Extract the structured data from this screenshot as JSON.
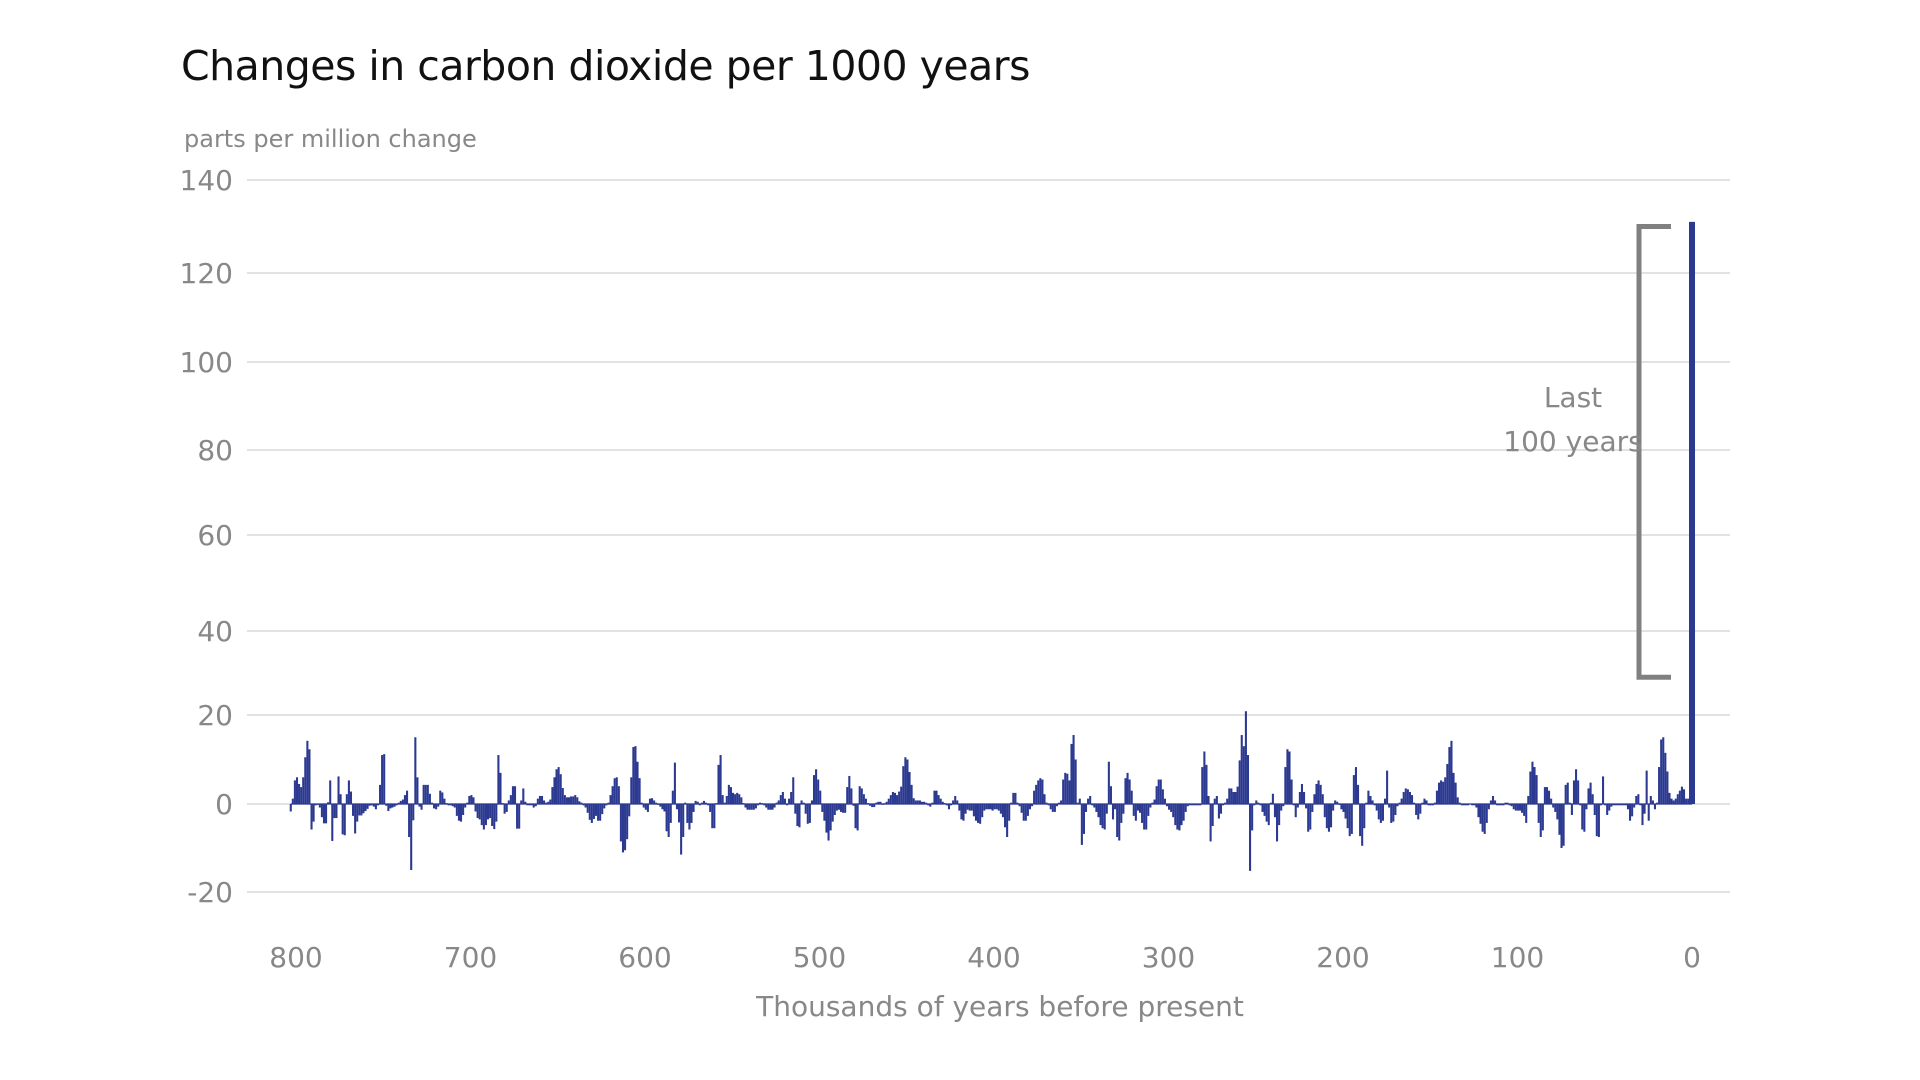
{
  "chart_data": {
    "type": "bar",
    "title": "Changes in carbon dioxide per 1000 years",
    "ylabel": "parts per million change",
    "xlabel": "Thousands of years before present",
    "ylim": [
      -20,
      140
    ],
    "xlim": [
      800,
      0
    ],
    "y_ticks": [
      "140",
      "120",
      "100",
      "80",
      "60",
      "40",
      "20",
      "0",
      "-20"
    ],
    "y_tick_values": [
      140,
      120,
      100,
      80,
      60,
      40,
      20,
      0,
      -20
    ],
    "x_ticks": [
      "800",
      "700",
      "600",
      "500",
      "400",
      "300",
      "200",
      "100",
      "0"
    ],
    "x_tick_values": [
      800,
      700,
      600,
      500,
      400,
      300,
      200,
      100,
      0
    ],
    "grid": true,
    "bar_color": "#2b3990",
    "annotation": {
      "lines": [
        "Last",
        "100 years"
      ],
      "bracket_range": [
        29,
        130
      ],
      "color": "#808080"
    },
    "series_start_year": 803,
    "series_end_year": 1,
    "values": [
      -1.7,
      1.2,
      5.3,
      6,
      4.5,
      3.8,
      6,
      10.5,
      14.2,
      12.3,
      -5.8,
      -4,
      -0.3,
      -0.2,
      -0.8,
      -3,
      -4.4,
      -4.4,
      0.4,
      5.3,
      -8.4,
      -3.2,
      -3.2,
      6.2,
      2.2,
      -6.9,
      -7.1,
      2.2,
      5.3,
      2.8,
      -2.7,
      -6.7,
      -4,
      -2.6,
      -2.6,
      -2.1,
      -1.6,
      -1.1,
      -0.4,
      -0.3,
      -0.6,
      -1.2,
      -0.3,
      4.3,
      11,
      11.2,
      -0.4,
      -1.6,
      -1,
      -0.8,
      -0.6,
      -0.3,
      0.3,
      0.7,
      1,
      2,
      3,
      -7.5,
      -15,
      -3.7,
      15,
      6,
      -0.6,
      -1.3,
      4.3,
      4.3,
      4.3,
      2.3,
      0.3,
      -1,
      -1.2,
      -0.6,
      3,
      2.6,
      1.2,
      0.2,
      -0.3,
      -0.3,
      -0.5,
      -0.8,
      -2.7,
      -3.8,
      -4,
      -2.5,
      -0.8,
      0.3,
      1.8,
      2,
      1.5,
      -1.7,
      -3.2,
      -3.5,
      -4.8,
      -5.8,
      -4.8,
      -3.5,
      -3.2,
      -5,
      -5.7,
      -4,
      11,
      7,
      0.2,
      -2.2,
      -1.8,
      0.8,
      2,
      4,
      4,
      -5.6,
      -5.6,
      0.8,
      3.5,
      0.5,
      -0.3,
      -0.3,
      -0.3,
      -0.8,
      -0.5,
      1.2,
      1.8,
      1.8,
      0.8,
      0.3,
      0.5,
      1,
      3.8,
      6,
      7.8,
      8.3,
      6.7,
      3.6,
      2,
      1.5,
      1.5,
      1.7,
      1.7,
      2,
      1.5,
      0.6,
      0.3,
      -0.3,
      -0.8,
      -2,
      -3.6,
      -4.3,
      -3.4,
      -2.7,
      -3.8,
      -3.8,
      -2.3,
      -1,
      -0.3,
      0.3,
      2,
      4,
      5.8,
      6,
      4,
      -8.5,
      -11,
      -10.5,
      -8,
      -2.8,
      6,
      12.8,
      13,
      9.5,
      5.8,
      0.3,
      -0.8,
      -1.3,
      -1.8,
      1.2,
      1.3,
      0.8,
      0.3,
      -0.2,
      -0.6,
      -1.2,
      -1.7,
      -6.2,
      -7.5,
      -4.3,
      3,
      9.3,
      -1.2,
      -4.2,
      -11.5,
      -7.5,
      0.3,
      -4.3,
      -5.8,
      -4.3,
      -1.8,
      0.7,
      0.5,
      -0.3,
      0.3,
      0.7,
      0.3,
      -0.3,
      -1.8,
      -5.5,
      -5.5,
      0.2,
      8.8,
      11,
      2,
      0.3,
      1.8,
      4.3,
      3.8,
      2.5,
      2.2,
      2.5,
      2.2,
      1.5,
      0.2,
      -0.8,
      -1.3,
      -1.3,
      -1.3,
      -1.3,
      -1,
      -0.3,
      0.3,
      0.2,
      -0.3,
      -0.8,
      -1.3,
      -1.3,
      -1.3,
      -0.8,
      0.3,
      0.8,
      2,
      2.7,
      1.2,
      -0.3,
      1.2,
      2.7,
      6,
      -2.2,
      -5,
      -5.3,
      0.8,
      0.3,
      -2.2,
      -4.5,
      -4.3,
      0.8,
      6.5,
      7.8,
      5.5,
      3,
      -1.8,
      -3.8,
      -6.5,
      -8.3,
      -6,
      -4,
      -2.5,
      -1.5,
      -1.3,
      -1.8,
      -2,
      -2,
      3.8,
      6.3,
      3.5,
      -0.4,
      -5.5,
      -6,
      4,
      3.5,
      2.2,
      1.2,
      0.2,
      -0.4,
      -0.7,
      -0.7,
      0.3,
      0.5,
      0.5,
      -0.2,
      0.2,
      0.5,
      1.2,
      2,
      2.7,
      2.5,
      2,
      2.8,
      3.9,
      8.5,
      10.5,
      10,
      7.2,
      4.3,
      1.3,
      0.8,
      0.8,
      0.8,
      0.5,
      0.5,
      0.3,
      -0.3,
      -0.6,
      0.3,
      3,
      3,
      2,
      1.2,
      0.5,
      0.2,
      -0.3,
      -1.2,
      -0.3,
      0.8,
      1.8,
      0.8,
      -1.5,
      -3.5,
      -3.8,
      -2.2,
      -1.3,
      -1.5,
      -1.5,
      -2.8,
      -3.8,
      -4.3,
      -4.5,
      -3,
      -1.5,
      -1.2,
      -1.2,
      -1.2,
      -1.5,
      -1.2,
      -1.2,
      -1.5,
      -2.2,
      -3,
      -5.3,
      -7.5,
      -3.8,
      0.3,
      2.5,
      2.5,
      0.3,
      -0.5,
      -2,
      -3.8,
      -3.8,
      -2.7,
      -1.2,
      -0.5,
      3,
      4.3,
      5.3,
      5.8,
      5.5,
      2.2,
      0.3,
      -0.3,
      -1.2,
      -1.8,
      -1.8,
      -0.5,
      0.3,
      0.8,
      5.5,
      7,
      6.8,
      5.3,
      13.5,
      15.5,
      10,
      0.3,
      1.2,
      -9.3,
      -6.8,
      -1.8,
      1.2,
      1.8,
      -0.3,
      -0.8,
      -1.8,
      -3,
      -4.8,
      -5.5,
      -5.8,
      -2.2,
      9.5,
      4,
      -3.5,
      -1.2,
      -7.5,
      -8.3,
      -4.3,
      -2.2,
      5.8,
      7,
      5.5,
      3,
      -2.7,
      -3.8,
      -1.5,
      -2,
      -4.3,
      -5.8,
      -5.8,
      -2.7,
      -0.8,
      0.3,
      1,
      4,
      5.5,
      5.5,
      3.3,
      1.2,
      -0.5,
      -1.3,
      -1.8,
      -3,
      -4.8,
      -5.8,
      -6,
      -4.8,
      -3.8,
      -1.8,
      -0.5,
      -0.3,
      -0.3,
      -0.3,
      -0.3,
      -0.3,
      -0.3,
      8.3,
      11.8,
      8.8,
      1.8,
      -8.5,
      -5,
      1.2,
      1.8,
      -3.3,
      -2.2,
      -0.3,
      0.3,
      1.2,
      3.5,
      3.5,
      2.7,
      2.7,
      3.9,
      9.8,
      15.5,
      13,
      20.9,
      11,
      -15.2,
      -6,
      -0.3,
      0.8,
      0.3,
      -0.3,
      -1.8,
      -2.7,
      -4,
      -4.8,
      0.3,
      2.3,
      -3,
      -8.5,
      -4.8,
      -1.5,
      -0.5,
      8.3,
      12.3,
      11.8,
      5.5,
      -0.3,
      -3,
      -0.8,
      2.7,
      4.5,
      2.7,
      -1,
      -6.3,
      -5.8,
      -1.8,
      2.2,
      4.5,
      5.3,
      4.3,
      2.2,
      -3,
      -5.5,
      -6.3,
      -5.3,
      -1.5,
      0.8,
      0.5,
      -0.2,
      -1.2,
      -1.8,
      -3.3,
      -5.5,
      -7.3,
      -6.8,
      6.5,
      8.3,
      4.3,
      -7.3,
      -9.5,
      -5.5,
      0.3,
      3,
      1.8,
      0.8,
      -0.3,
      -1.5,
      -3.5,
      -4.3,
      -3.8,
      1.2,
      7.5,
      -0.8,
      -4.3,
      -4,
      -2.5,
      -0.5,
      0.3,
      1.2,
      2.7,
      3.5,
      3.3,
      2.7,
      2,
      0.3,
      -2.5,
      -3.5,
      -2.2,
      0.3,
      1.2,
      0.8,
      -0.3,
      -0.3,
      -0.3,
      0.3,
      3,
      4.8,
      5.3,
      5,
      6,
      9,
      12.8,
      14.2,
      7,
      4.8,
      1.5,
      0.3,
      -0.3,
      -0.3,
      -0.3,
      -0.3,
      0.1,
      -0.3,
      -0.3,
      -0.8,
      -3,
      -4.5,
      -6.3,
      -6.8,
      -4.3,
      -1.2,
      0.8,
      1.8,
      0.8,
      -0.3,
      -0.3,
      -0.3,
      -0.3,
      0.3,
      0.3,
      -0.3,
      -0.5,
      -1.2,
      -1.5,
      -1.5,
      -1.5,
      -2,
      -2.7,
      -4.3,
      1.8,
      7.3,
      9.5,
      8.3,
      6.5,
      -4.3,
      -7.5,
      -6,
      3.8,
      3.8,
      3,
      1.2,
      -0.8,
      -1.8,
      -3.5,
      -7,
      -10,
      -9.5,
      4.3,
      4.8,
      0.3,
      -2.5,
      5.3,
      7.8,
      5.3,
      -0.3,
      -5.8,
      -6.3,
      -1.2,
      3.5,
      4.8,
      2.2,
      -2.5,
      -7.3,
      -7.5,
      -0.3,
      6.2,
      -0.3,
      -2.5,
      -1.5,
      -0.6,
      -0.3,
      -0.3,
      -0.3,
      -0.3,
      -0.3,
      -0.3,
      -0.3,
      -1.2,
      -3.8,
      -2.8,
      -0.8,
      1.8,
      2.2,
      -0.3,
      -4.8,
      -2.2,
      7.5,
      -3.8,
      1.8,
      0.8,
      -1.2,
      0.3,
      8.3,
      14.5,
      15,
      11.5,
      7.3,
      2.5,
      1.2,
      0.8,
      1.2,
      2.2,
      3,
      3.9,
      3.3,
      1.2,
      1.2,
      1.2
    ],
    "final_point": {
      "year": 0,
      "value": 131
    }
  }
}
